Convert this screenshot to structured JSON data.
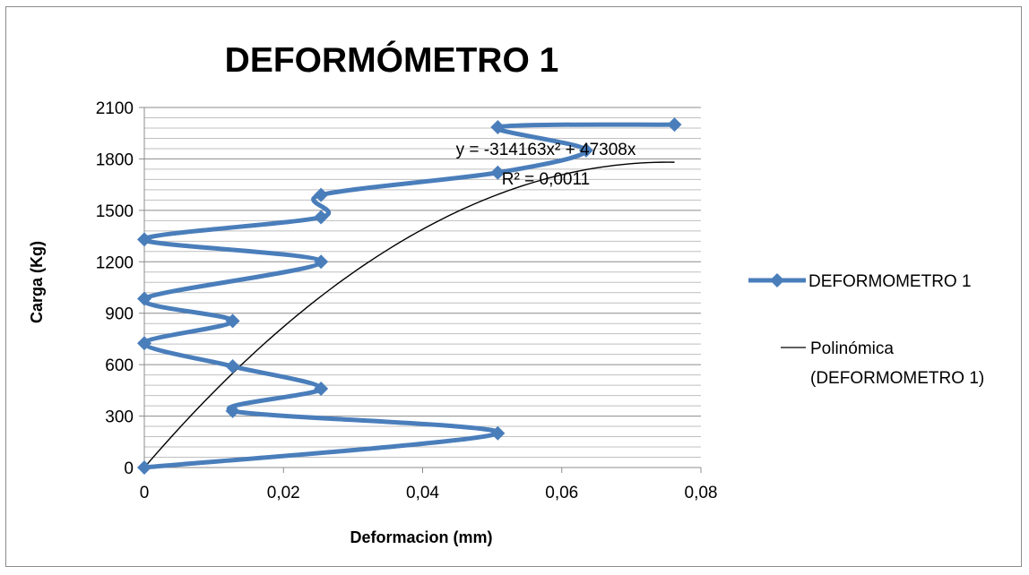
{
  "chart_data": {
    "type": "line",
    "title": "DEFORMÓMETRO 1",
    "xlabel": "Deformacion (mm)",
    "ylabel": "Carga (Kg)",
    "xlim": [
      0,
      0.08
    ],
    "ylim": [
      0,
      2100
    ],
    "x_ticks": [
      "0",
      "0,02",
      "0,04",
      "0,06",
      "0,08"
    ],
    "y_ticks": [
      "0",
      "300",
      "600",
      "900",
      "1200",
      "1500",
      "1800",
      "2100"
    ],
    "grid": true,
    "minor_y_step": 60,
    "legend_position": "right",
    "series": [
      {
        "name": "DEFORMOMETRO 1",
        "color": "#4a7ebb",
        "marker": "diamond",
        "points": [
          [
            0,
            0
          ],
          [
            0.0508,
            200
          ],
          [
            0.0127,
            330
          ],
          [
            0.0254,
            460
          ],
          [
            0.0127,
            590
          ],
          [
            0,
            725
          ],
          [
            0.0127,
            855
          ],
          [
            0,
            985
          ],
          [
            0.0254,
            1200
          ],
          [
            0,
            1330
          ],
          [
            0.0254,
            1460
          ],
          [
            0.0254,
            1590
          ],
          [
            0.0508,
            1720
          ],
          [
            0.0635,
            1850
          ],
          [
            0.0508,
            1985
          ],
          [
            0.0762,
            2000
          ]
        ]
      },
      {
        "name": "Polinómica (DEFORMOMETRO 1)",
        "color": "#000000",
        "type": "trendline",
        "equation": {
          "a": -314163,
          "b": 47308
        },
        "x_range": [
          0,
          0.0762
        ]
      }
    ],
    "annotations": {
      "equation": "y = -314163x² + 47308x",
      "r2": "R² = 0,0011"
    }
  }
}
